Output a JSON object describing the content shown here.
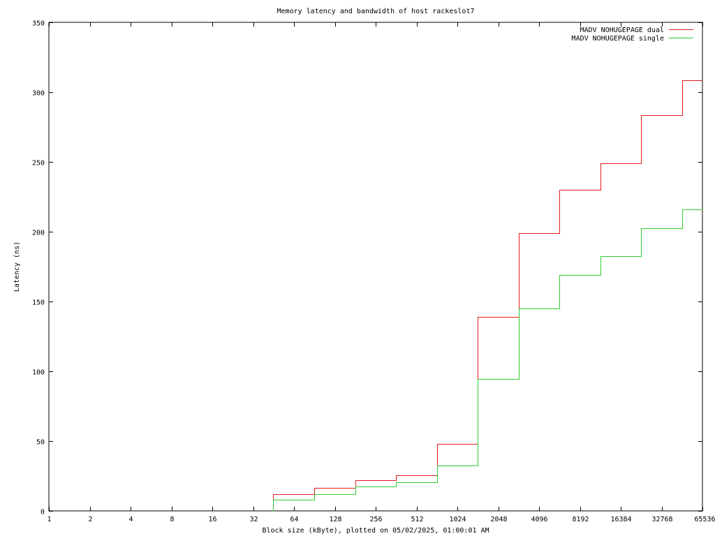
{
  "chart_data": {
    "type": "line",
    "title": "Memory latency and bandwidth of host rackeslot7",
    "xlabel": "Block size (kByte), plotted on 05/02/2025, 01:00:01 AM",
    "ylabel": "Latency (ns)",
    "x_scale": "log2",
    "xlim": [
      1,
      65536
    ],
    "ylim": [
      0,
      350
    ],
    "x_ticks": [
      "1",
      "2",
      "4",
      "8",
      "16",
      "32",
      "64",
      "128",
      "256",
      "512",
      "1024",
      "2048",
      "4096",
      "8192",
      "16384",
      "32768",
      "65536"
    ],
    "y_ticks": [
      "0",
      "50",
      "100",
      "150",
      "200",
      "250",
      "300",
      "350"
    ],
    "legend_position": "top-right",
    "grid": false,
    "series": [
      {
        "name": "MADV NOHUGEPAGE dual",
        "color": "#e41a1c",
        "step": true,
        "points": [
          [
            45,
            12
          ],
          [
            90,
            16.5
          ],
          [
            181,
            22
          ],
          [
            362,
            25.5
          ],
          [
            724,
            48
          ],
          [
            1448,
            139
          ],
          [
            2896,
            199
          ],
          [
            5793,
            230
          ],
          [
            11585,
            249
          ],
          [
            23170,
            283.5
          ],
          [
            46341,
            308.5
          ],
          [
            65536,
            308.5
          ]
        ]
      },
      {
        "name": "MADV NOHUGEPAGE single",
        "color": "#2ecc2e",
        "step": true,
        "points": [
          [
            45,
            8
          ],
          [
            90,
            12
          ],
          [
            181,
            17.5
          ],
          [
            362,
            20.5
          ],
          [
            724,
            32.5
          ],
          [
            1448,
            94.5
          ],
          [
            2896,
            145
          ],
          [
            5793,
            169
          ],
          [
            11585,
            182.5
          ],
          [
            23170,
            202.5
          ],
          [
            46341,
            216
          ],
          [
            65536,
            216
          ]
        ]
      }
    ]
  }
}
